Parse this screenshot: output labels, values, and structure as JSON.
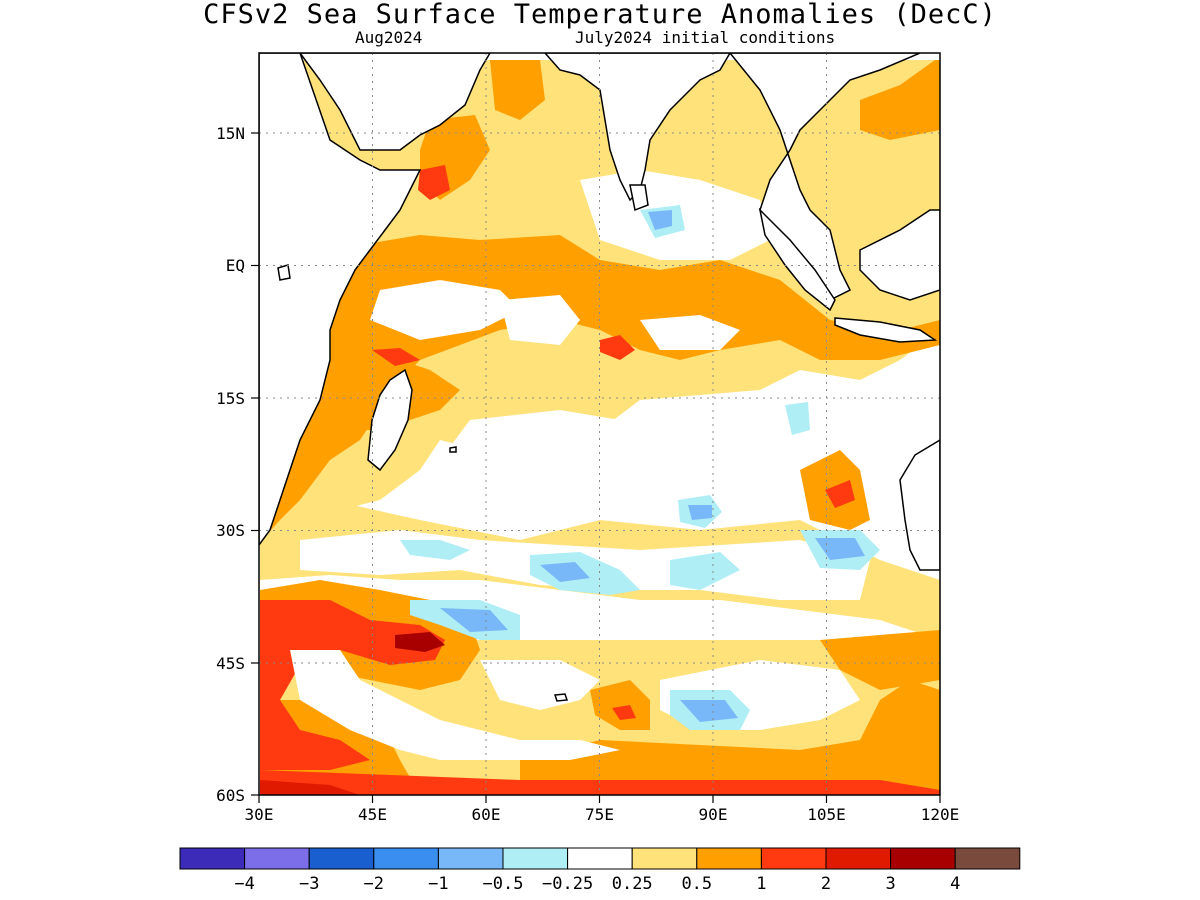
{
  "title": "CFSv2 Sea Surface Temperature Anomalies (DecC)",
  "subtitle_left": "Aug2024",
  "subtitle_right": "July2024 initial conditions",
  "map": {
    "lon_range": [
      30,
      120
    ],
    "lat_range": [
      -60,
      24
    ],
    "lon_ticks": [
      {
        "value": 30,
        "label": "30E"
      },
      {
        "value": 45,
        "label": "45E"
      },
      {
        "value": 60,
        "label": "60E"
      },
      {
        "value": 75,
        "label": "75E"
      },
      {
        "value": 90,
        "label": "90E"
      },
      {
        "value": 105,
        "label": "105E"
      },
      {
        "value": 120,
        "label": "120E"
      }
    ],
    "lat_ticks": [
      {
        "value": 15,
        "label": "15N"
      },
      {
        "value": 0,
        "label": "EQ"
      },
      {
        "value": -15,
        "label": "15S"
      },
      {
        "value": -30,
        "label": "30S"
      },
      {
        "value": -45,
        "label": "45S"
      },
      {
        "value": -60,
        "label": "60S"
      }
    ],
    "grid": "dotted"
  },
  "colorbar": {
    "colors": [
      "#3b2bb8",
      "#7b6ee8",
      "#1a5fd0",
      "#3a8ef0",
      "#78b8f8",
      "#b0eef6",
      "#ffffff",
      "#ffe27a",
      "#ffa000",
      "#ff3a10",
      "#e01a00",
      "#a80000",
      "#7a4a3c"
    ],
    "labels": [
      "−4",
      "−3",
      "−2",
      "−1",
      "−0.5",
      "−0.25",
      "0.25",
      "0.5",
      "1",
      "2",
      "3",
      "4"
    ]
  },
  "fields": {
    "land": "#ffffff",
    "coast": "#000000"
  }
}
